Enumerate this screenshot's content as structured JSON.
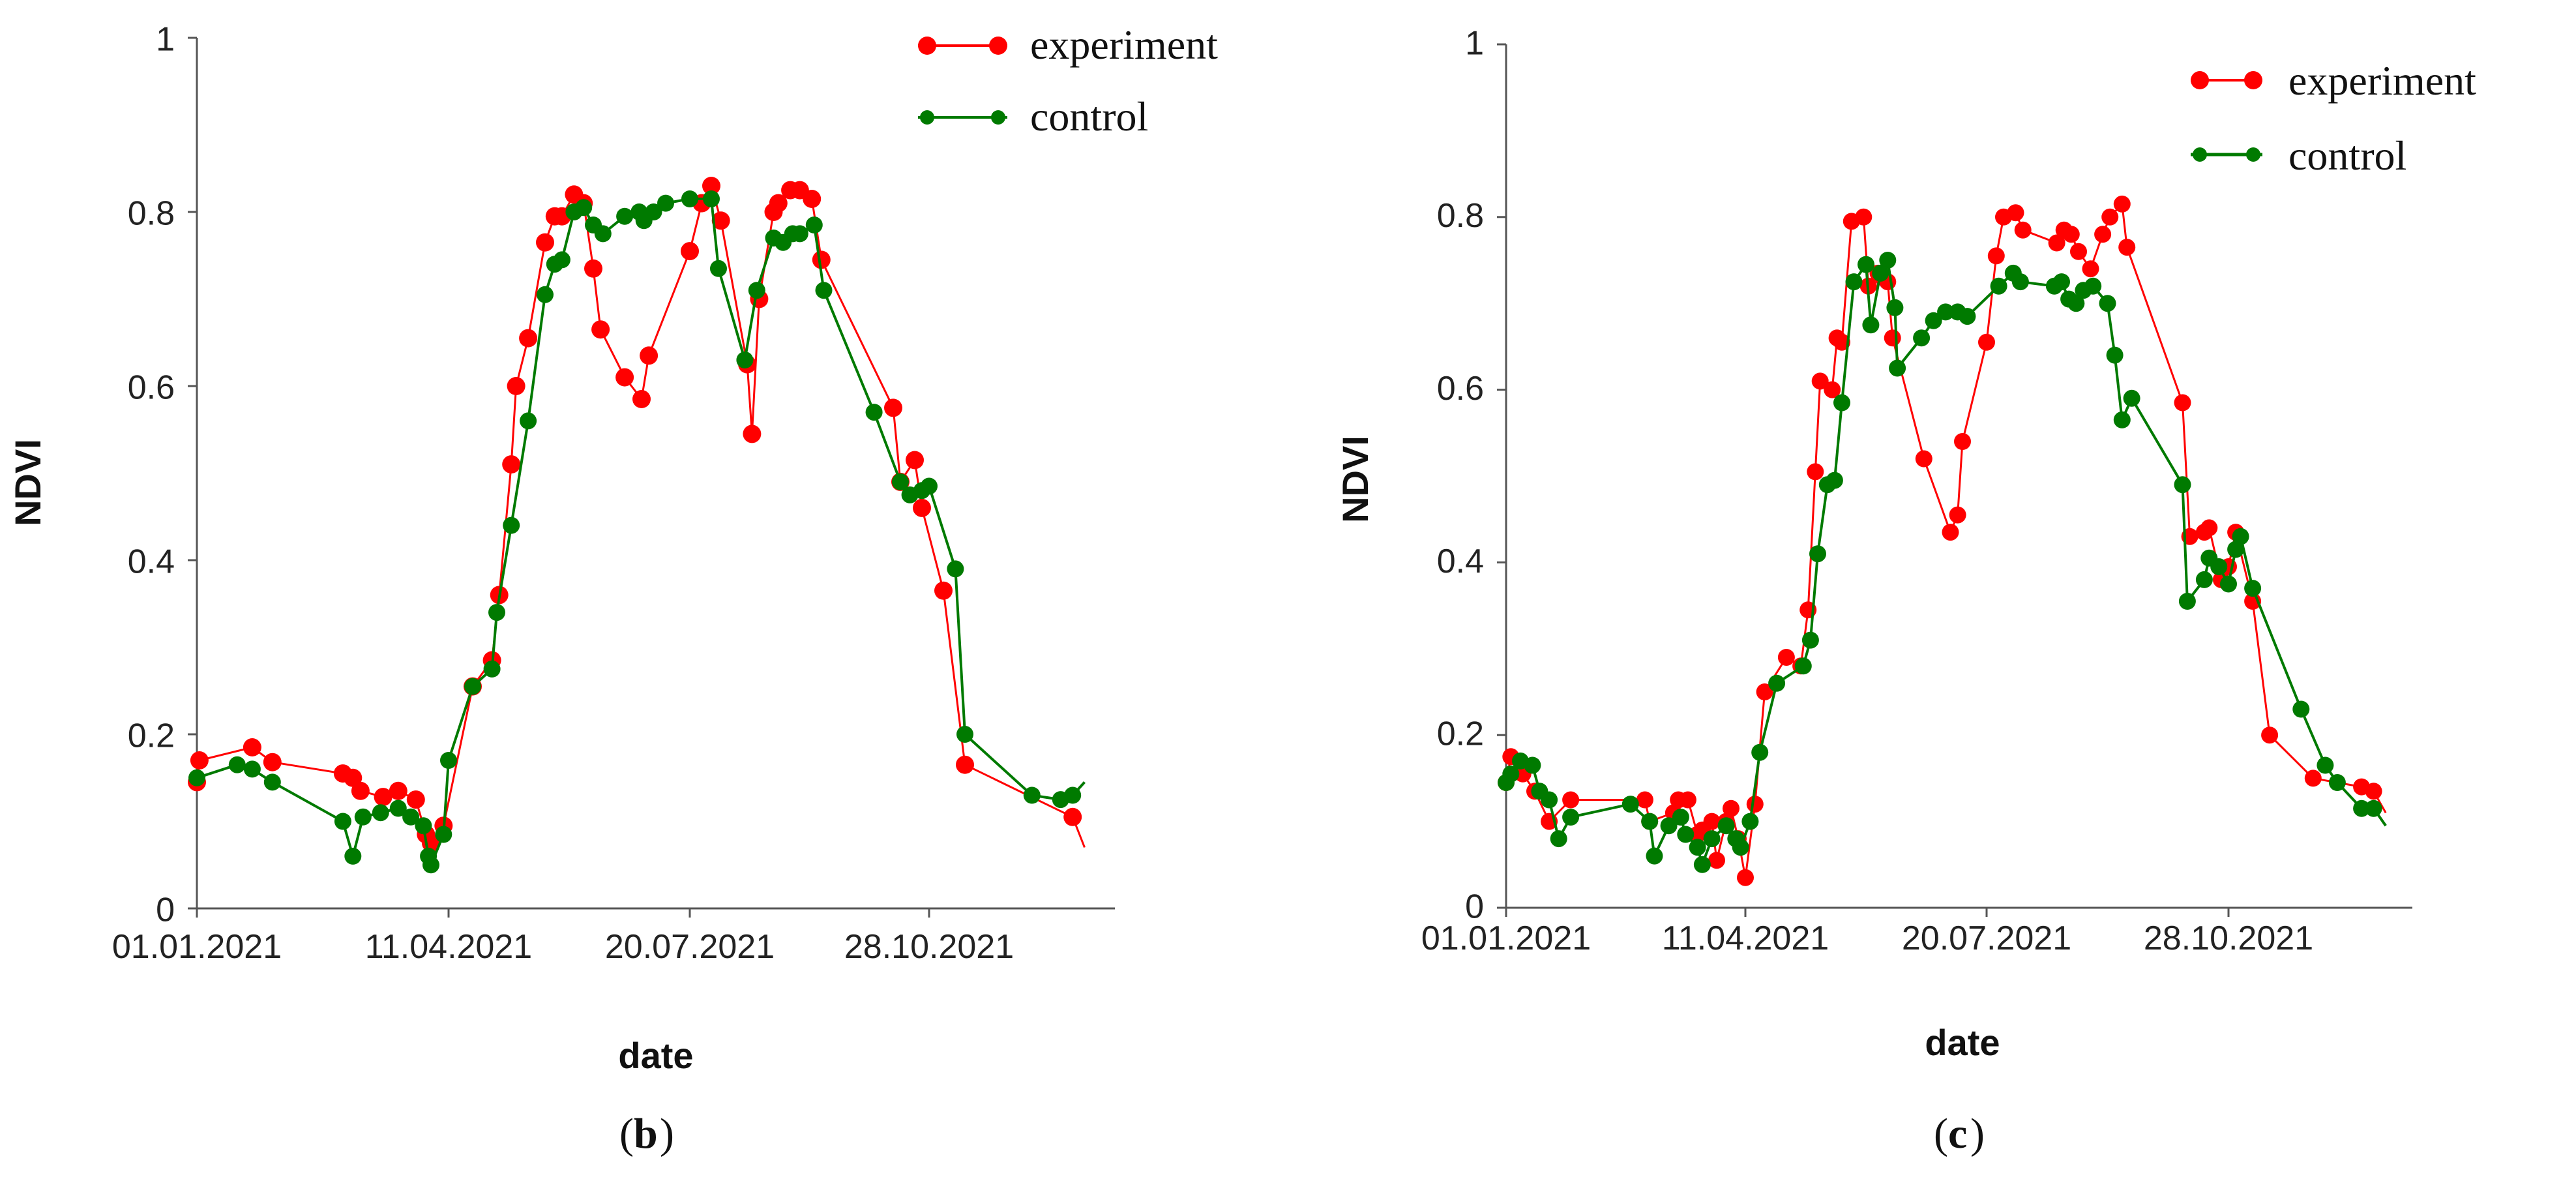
{
  "chart_data": [
    {
      "type": "line",
      "panel_label": "b",
      "xlabel": "date",
      "ylabel": "NDVI",
      "ylim": [
        0,
        1
      ],
      "yticks": [
        "0",
        "0.2",
        "0.4",
        "0.6",
        "0.8",
        "1"
      ],
      "xlim": [
        0,
        365
      ],
      "xticks": [
        {
          "day": 0,
          "label": "01.01.2021"
        },
        {
          "day": 100,
          "label": "11.04.2021"
        },
        {
          "day": 200,
          "label": "20.07.2021"
        },
        {
          "day": 300,
          "label": "28.10.2021"
        }
      ],
      "legend": "top-right",
      "series": [
        {
          "name": "experiment",
          "color": "#ff0000",
          "points": [
            [
              0,
              0.145
            ],
            [
              1,
              0.17
            ],
            [
              22,
              0.185
            ],
            [
              30,
              0.168
            ],
            [
              58,
              0.155
            ],
            [
              62,
              0.15
            ],
            [
              65,
              0.135
            ],
            [
              74,
              0.128
            ],
            [
              80,
              0.135
            ],
            [
              87,
              0.125
            ],
            [
              91,
              0.085
            ],
            [
              93,
              0.075
            ],
            [
              98,
              0.095
            ],
            [
              110,
              0.255
            ],
            [
              118,
              0.285
            ],
            [
              121,
              0.36
            ],
            [
              126,
              0.51
            ],
            [
              128,
              0.6
            ],
            [
              133,
              0.655
            ],
            [
              140,
              0.765
            ],
            [
              144,
              0.795
            ],
            [
              147,
              0.795
            ],
            [
              152,
              0.82
            ],
            [
              156,
              0.81
            ],
            [
              160,
              0.735
            ],
            [
              163,
              0.665
            ],
            [
              173,
              0.61
            ],
            [
              180,
              0.585
            ],
            [
              183,
              0.635
            ],
            [
              200,
              0.755
            ],
            [
              205,
              0.81
            ],
            [
              209,
              0.83
            ],
            [
              213,
              0.79
            ],
            [
              224,
              0.625
            ],
            [
              226,
              0.545
            ],
            [
              229,
              0.7
            ],
            [
              235,
              0.8
            ],
            [
              237,
              0.81
            ],
            [
              242,
              0.825
            ],
            [
              246,
              0.825
            ],
            [
              251,
              0.815
            ],
            [
              255,
              0.745
            ],
            [
              285,
              0.575
            ],
            [
              288,
              0.49
            ],
            [
              294,
              0.515
            ],
            [
              297,
              0.46
            ],
            [
              306,
              0.365
            ],
            [
              315,
              0.165
            ],
            [
              360,
              0.105
            ],
            [
              365,
              0.07
            ]
          ]
        },
        {
          "name": "control",
          "color": "#007a00",
          "points": [
            [
              0,
              0.15
            ],
            [
              16,
              0.165
            ],
            [
              22,
              0.16
            ],
            [
              30,
              0.145
            ],
            [
              58,
              0.1
            ],
            [
              62,
              0.06
            ],
            [
              66,
              0.105
            ],
            [
              73,
              0.11
            ],
            [
              80,
              0.115
            ],
            [
              85,
              0.105
            ],
            [
              90,
              0.095
            ],
            [
              92,
              0.06
            ],
            [
              93,
              0.05
            ],
            [
              98,
              0.085
            ],
            [
              100,
              0.17
            ],
            [
              110,
              0.255
            ],
            [
              118,
              0.275
            ],
            [
              120,
              0.34
            ],
            [
              126,
              0.44
            ],
            [
              133,
              0.56
            ],
            [
              140,
              0.705
            ],
            [
              144,
              0.74
            ],
            [
              147,
              0.745
            ],
            [
              152,
              0.8
            ],
            [
              156,
              0.805
            ],
            [
              160,
              0.785
            ],
            [
              164,
              0.775
            ],
            [
              173,
              0.795
            ],
            [
              179,
              0.8
            ],
            [
              181,
              0.79
            ],
            [
              185,
              0.8
            ],
            [
              190,
              0.81
            ],
            [
              200,
              0.815
            ],
            [
              209,
              0.815
            ],
            [
              212,
              0.735
            ],
            [
              223,
              0.63
            ],
            [
              228,
              0.71
            ],
            [
              235,
              0.77
            ],
            [
              239,
              0.765
            ],
            [
              243,
              0.775
            ],
            [
              246,
              0.775
            ],
            [
              252,
              0.785
            ],
            [
              256,
              0.71
            ],
            [
              277,
              0.57
            ],
            [
              288,
              0.49
            ],
            [
              292,
              0.475
            ],
            [
              297,
              0.48
            ],
            [
              300,
              0.485
            ],
            [
              311,
              0.39
            ],
            [
              315,
              0.2
            ],
            [
              343,
              0.13
            ],
            [
              355,
              0.125
            ],
            [
              360,
              0.13
            ],
            [
              365,
              0.145
            ]
          ]
        }
      ]
    },
    {
      "type": "line",
      "panel_label": "c",
      "xlabel": "date",
      "ylabel": "NDVI",
      "ylim": [
        0,
        1
      ],
      "yticks": [
        "0",
        "0.2",
        "0.4",
        "0.6",
        "0.8",
        "1"
      ],
      "xlim": [
        0,
        365
      ],
      "xticks": [
        {
          "day": 0,
          "label": "01.01.2021"
        },
        {
          "day": 100,
          "label": "11.04.2021"
        },
        {
          "day": 200,
          "label": "20.07.2021"
        },
        {
          "day": 300,
          "label": "28.10.2021"
        }
      ],
      "legend": "top-right",
      "series": [
        {
          "name": "experiment",
          "color": "#ff0000",
          "points": [
            [
              0,
              0.145
            ],
            [
              2,
              0.175
            ],
            [
              7,
              0.155
            ],
            [
              12,
              0.135
            ],
            [
              18,
              0.1
            ],
            [
              27,
              0.125
            ],
            [
              58,
              0.125
            ],
            [
              60,
              0.1
            ],
            [
              70,
              0.11
            ],
            [
              72,
              0.125
            ],
            [
              76,
              0.125
            ],
            [
              80,
              0.085
            ],
            [
              82,
              0.09
            ],
            [
              86,
              0.1
            ],
            [
              88,
              0.055
            ],
            [
              92,
              0.1
            ],
            [
              94,
              0.115
            ],
            [
              97,
              0.08
            ],
            [
              100,
              0.035
            ],
            [
              104,
              0.12
            ],
            [
              108,
              0.25
            ],
            [
              117,
              0.29
            ],
            [
              123,
              0.28
            ],
            [
              126,
              0.345
            ],
            [
              129,
              0.505
            ],
            [
              131,
              0.61
            ],
            [
              136,
              0.6
            ],
            [
              138,
              0.66
            ],
            [
              140,
              0.655
            ],
            [
              144,
              0.795
            ],
            [
              149,
              0.8
            ],
            [
              151,
              0.72
            ],
            [
              155,
              0.735
            ],
            [
              157,
              0.73
            ],
            [
              159,
              0.725
            ],
            [
              161,
              0.66
            ],
            [
              174,
              0.52
            ],
            [
              185,
              0.435
            ],
            [
              188,
              0.455
            ],
            [
              190,
              0.54
            ],
            [
              200,
              0.655
            ],
            [
              204,
              0.755
            ],
            [
              207,
              0.8
            ],
            [
              212,
              0.805
            ],
            [
              215,
              0.785
            ],
            [
              229,
              0.77
            ],
            [
              232,
              0.785
            ],
            [
              235,
              0.78
            ],
            [
              238,
              0.76
            ],
            [
              243,
              0.74
            ],
            [
              248,
              0.78
            ],
            [
              251,
              0.8
            ],
            [
              256,
              0.815
            ],
            [
              258,
              0.765
            ],
            [
              281,
              0.585
            ],
            [
              284,
              0.43
            ],
            [
              290,
              0.435
            ],
            [
              292,
              0.44
            ],
            [
              297,
              0.38
            ],
            [
              300,
              0.395
            ],
            [
              303,
              0.435
            ],
            [
              310,
              0.355
            ],
            [
              317,
              0.2
            ],
            [
              335,
              0.15
            ],
            [
              355,
              0.14
            ],
            [
              360,
              0.135
            ],
            [
              365,
              0.11
            ]
          ]
        },
        {
          "name": "control",
          "color": "#007a00",
          "points": [
            [
              0,
              0.145
            ],
            [
              2,
              0.155
            ],
            [
              6,
              0.17
            ],
            [
              11,
              0.165
            ],
            [
              14,
              0.135
            ],
            [
              18,
              0.125
            ],
            [
              22,
              0.08
            ],
            [
              27,
              0.105
            ],
            [
              52,
              0.12
            ],
            [
              60,
              0.1
            ],
            [
              62,
              0.06
            ],
            [
              68,
              0.095
            ],
            [
              73,
              0.105
            ],
            [
              75,
              0.085
            ],
            [
              80,
              0.07
            ],
            [
              82,
              0.05
            ],
            [
              86,
              0.08
            ],
            [
              92,
              0.095
            ],
            [
              96,
              0.08
            ],
            [
              98,
              0.07
            ],
            [
              102,
              0.1
            ],
            [
              106,
              0.18
            ],
            [
              113,
              0.26
            ],
            [
              124,
              0.28
            ],
            [
              127,
              0.31
            ],
            [
              130,
              0.41
            ],
            [
              134,
              0.49
            ],
            [
              137,
              0.495
            ],
            [
              140,
              0.585
            ],
            [
              145,
              0.725
            ],
            [
              150,
              0.745
            ],
            [
              152,
              0.675
            ],
            [
              156,
              0.735
            ],
            [
              159,
              0.75
            ],
            [
              162,
              0.695
            ],
            [
              163,
              0.625
            ],
            [
              173,
              0.66
            ],
            [
              178,
              0.68
            ],
            [
              183,
              0.69
            ],
            [
              188,
              0.69
            ],
            [
              192,
              0.685
            ],
            [
              205,
              0.72
            ],
            [
              211,
              0.735
            ],
            [
              214,
              0.725
            ],
            [
              228,
              0.72
            ],
            [
              231,
              0.725
            ],
            [
              234,
              0.705
            ],
            [
              237,
              0.7
            ],
            [
              240,
              0.715
            ],
            [
              244,
              0.72
            ],
            [
              250,
              0.7
            ],
            [
              253,
              0.64
            ],
            [
              256,
              0.565
            ],
            [
              260,
              0.59
            ],
            [
              281,
              0.49
            ],
            [
              283,
              0.355
            ],
            [
              290,
              0.38
            ],
            [
              292,
              0.405
            ],
            [
              296,
              0.395
            ],
            [
              300,
              0.375
            ],
            [
              303,
              0.415
            ],
            [
              305,
              0.43
            ],
            [
              310,
              0.37
            ],
            [
              330,
              0.23
            ],
            [
              340,
              0.165
            ],
            [
              345,
              0.145
            ],
            [
              355,
              0.115
            ],
            [
              360,
              0.115
            ],
            [
              365,
              0.095
            ]
          ]
        }
      ]
    }
  ]
}
